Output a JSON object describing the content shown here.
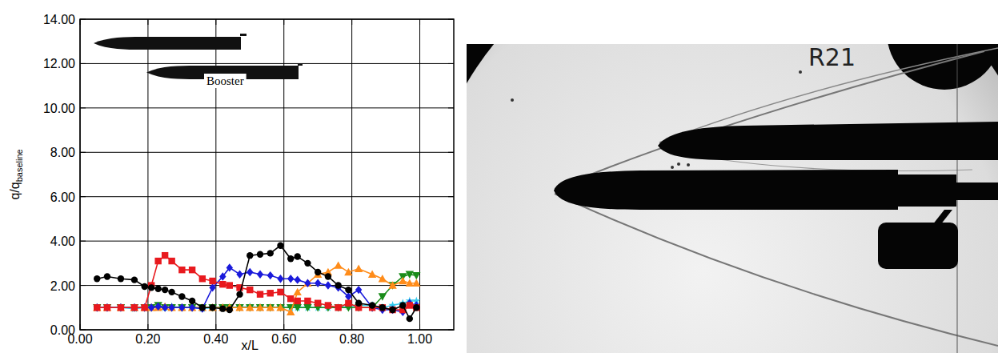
{
  "chart_data": {
    "type": "line",
    "xlabel": "x/L",
    "ylabel": "q/q",
    "ylabel_sub": "baseline",
    "inset_label": "Booster",
    "photo_label": "R21",
    "xlim": [
      0,
      1.1
    ],
    "ylim": [
      0,
      14
    ],
    "xticks": [
      {
        "value": 0,
        "label": "0.00"
      },
      {
        "value": 0.2,
        "label": "0.20"
      },
      {
        "value": 0.4,
        "label": "0.40"
      },
      {
        "value": 0.6,
        "label": "0.60"
      },
      {
        "value": 0.8,
        "label": "0.80"
      },
      {
        "value": 1.0,
        "label": "1.00"
      }
    ],
    "yticks": [
      {
        "value": 0,
        "label": "0.00"
      },
      {
        "value": 2,
        "label": "2.00"
      },
      {
        "value": 4,
        "label": "4.00"
      },
      {
        "value": 6,
        "label": "6.00"
      },
      {
        "value": 8,
        "label": "8.00"
      },
      {
        "value": 10,
        "label": "10.00"
      },
      {
        "value": 12,
        "label": "12.00"
      },
      {
        "value": 14,
        "label": "14.00"
      }
    ],
    "grid": true,
    "x": [
      0.05,
      0.08,
      0.12,
      0.16,
      0.19,
      0.21,
      0.23,
      0.25,
      0.27,
      0.3,
      0.33,
      0.36,
      0.39,
      0.42,
      0.44,
      0.47,
      0.5,
      0.53,
      0.56,
      0.59,
      0.62,
      0.64,
      0.67,
      0.7,
      0.73,
      0.76,
      0.79,
      0.82,
      0.86,
      0.89,
      0.92,
      0.95,
      0.97,
      0.99
    ],
    "series": [
      {
        "color": "#000000",
        "marker": "circle",
        "values": [
          2.3,
          2.4,
          2.3,
          2.25,
          1.95,
          1.9,
          1.85,
          1.8,
          1.7,
          1.5,
          1.3,
          1.0,
          1.0,
          0.95,
          0.9,
          1.6,
          3.35,
          3.4,
          3.45,
          3.8,
          3.2,
          3.3,
          3.0,
          2.6,
          2.4,
          2.0,
          1.8,
          1.2,
          1.1,
          1.0,
          0.9,
          1.1,
          0.5,
          1.0
        ]
      },
      {
        "color": "#e8191e",
        "marker": "square",
        "values": [
          1.0,
          1.0,
          1.0,
          1.0,
          1.0,
          2.0,
          3.1,
          3.35,
          3.1,
          2.7,
          2.7,
          2.3,
          2.2,
          2.05,
          2.0,
          1.9,
          1.8,
          1.6,
          1.65,
          1.7,
          1.4,
          1.3,
          1.3,
          1.2,
          1.1,
          1.0,
          1.2,
          1.0,
          1.0,
          1.0,
          0.9,
          0.9,
          1.1,
          1.0
        ]
      },
      {
        "color": "#1a1adb",
        "marker": "diamond",
        "values": [
          1.0,
          1.0,
          1.0,
          1.0,
          1.0,
          1.0,
          1.05,
          1.0,
          1.0,
          1.0,
          1.0,
          0.95,
          1.9,
          2.4,
          2.8,
          2.5,
          2.6,
          2.5,
          2.45,
          2.3,
          2.3,
          2.25,
          2.1,
          2.1,
          2.0,
          1.9,
          1.5,
          1.8,
          1.0,
          0.9,
          0.9,
          0.8,
          1.2,
          1.1
        ]
      },
      {
        "color": "#ff8c1a",
        "marker": "triangle",
        "values": [
          1.0,
          1.0,
          1.0,
          1.0,
          1.0,
          1.0,
          1.0,
          1.05,
          1.0,
          1.0,
          1.0,
          1.0,
          1.0,
          1.0,
          1.0,
          1.0,
          1.0,
          1.0,
          1.0,
          1.0,
          0.8,
          1.7,
          2.1,
          2.5,
          2.6,
          2.9,
          2.6,
          2.75,
          2.5,
          2.3,
          2.0,
          2.2,
          2.1,
          2.1
        ]
      },
      {
        "color": "#1a8c1a",
        "marker": "triangle-down",
        "values": [
          1.0,
          1.0,
          1.0,
          1.0,
          1.0,
          1.0,
          1.1,
          1.0,
          1.0,
          1.0,
          1.0,
          1.0,
          1.0,
          1.0,
          1.0,
          1.0,
          1.0,
          1.0,
          1.0,
          1.0,
          1.0,
          1.0,
          1.0,
          1.0,
          1.0,
          1.0,
          1.0,
          1.0,
          1.0,
          1.5,
          2.0,
          2.4,
          2.5,
          2.45
        ]
      },
      {
        "color": "#33ccee",
        "marker": "star",
        "values": [
          1.0,
          1.0,
          1.0,
          0.95,
          1.0,
          1.0,
          1.0,
          1.0,
          1.05,
          1.0,
          1.0,
          0.95,
          1.0,
          1.0,
          1.0,
          1.0,
          1.05,
          1.0,
          1.0,
          1.0,
          1.0,
          1.0,
          1.0,
          1.0,
          1.0,
          1.0,
          1.05,
          1.1,
          1.1,
          1.0,
          1.1,
          1.2,
          1.3,
          1.3
        ]
      }
    ]
  }
}
